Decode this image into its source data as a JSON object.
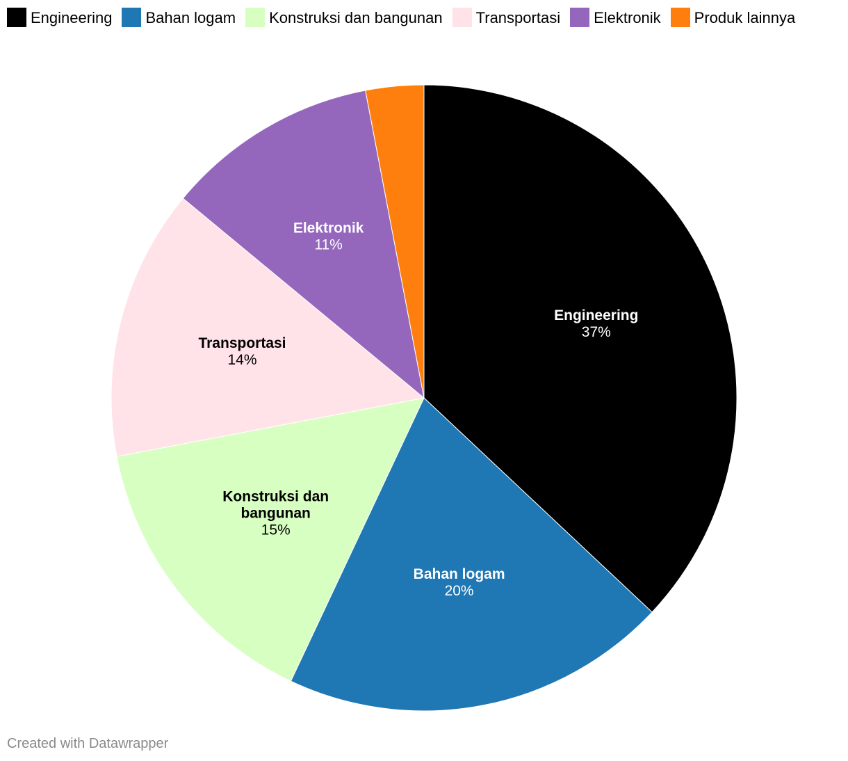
{
  "chart_data": {
    "type": "pie",
    "slices": [
      {
        "label": "Engineering",
        "value": 37,
        "value_label": "37%",
        "color": "#000000",
        "text_color": "#ffffff",
        "label_lines": [
          "Engineering"
        ]
      },
      {
        "label": "Bahan logam",
        "value": 20,
        "value_label": "20%",
        "color": "#1f77b4",
        "text_color": "#ffffff",
        "label_lines": [
          "Bahan logam"
        ]
      },
      {
        "label": "Konstruksi dan bangunan",
        "value": 15,
        "value_label": "15%",
        "color": "#d7ffc2",
        "text_color": "#000000",
        "label_lines": [
          "Konstruksi dan",
          "bangunan"
        ]
      },
      {
        "label": "Transportasi",
        "value": 14,
        "value_label": "14%",
        "color": "#ffe3e8",
        "text_color": "#000000",
        "label_lines": [
          "Transportasi"
        ]
      },
      {
        "label": "Elektronik",
        "value": 11,
        "value_label": "11%",
        "color": "#9467bd",
        "text_color": "#ffffff",
        "label_lines": [
          "Elektronik"
        ]
      },
      {
        "label": "Produk lainnya",
        "value": 3,
        "value_label": "",
        "color": "#ff7f0e",
        "text_color": "#000000",
        "label_lines": []
      }
    ],
    "legend_position": "top-left",
    "start_angle": "12 o'clock, clockwise"
  },
  "footer": {
    "credit": "Created with Datawrapper"
  }
}
